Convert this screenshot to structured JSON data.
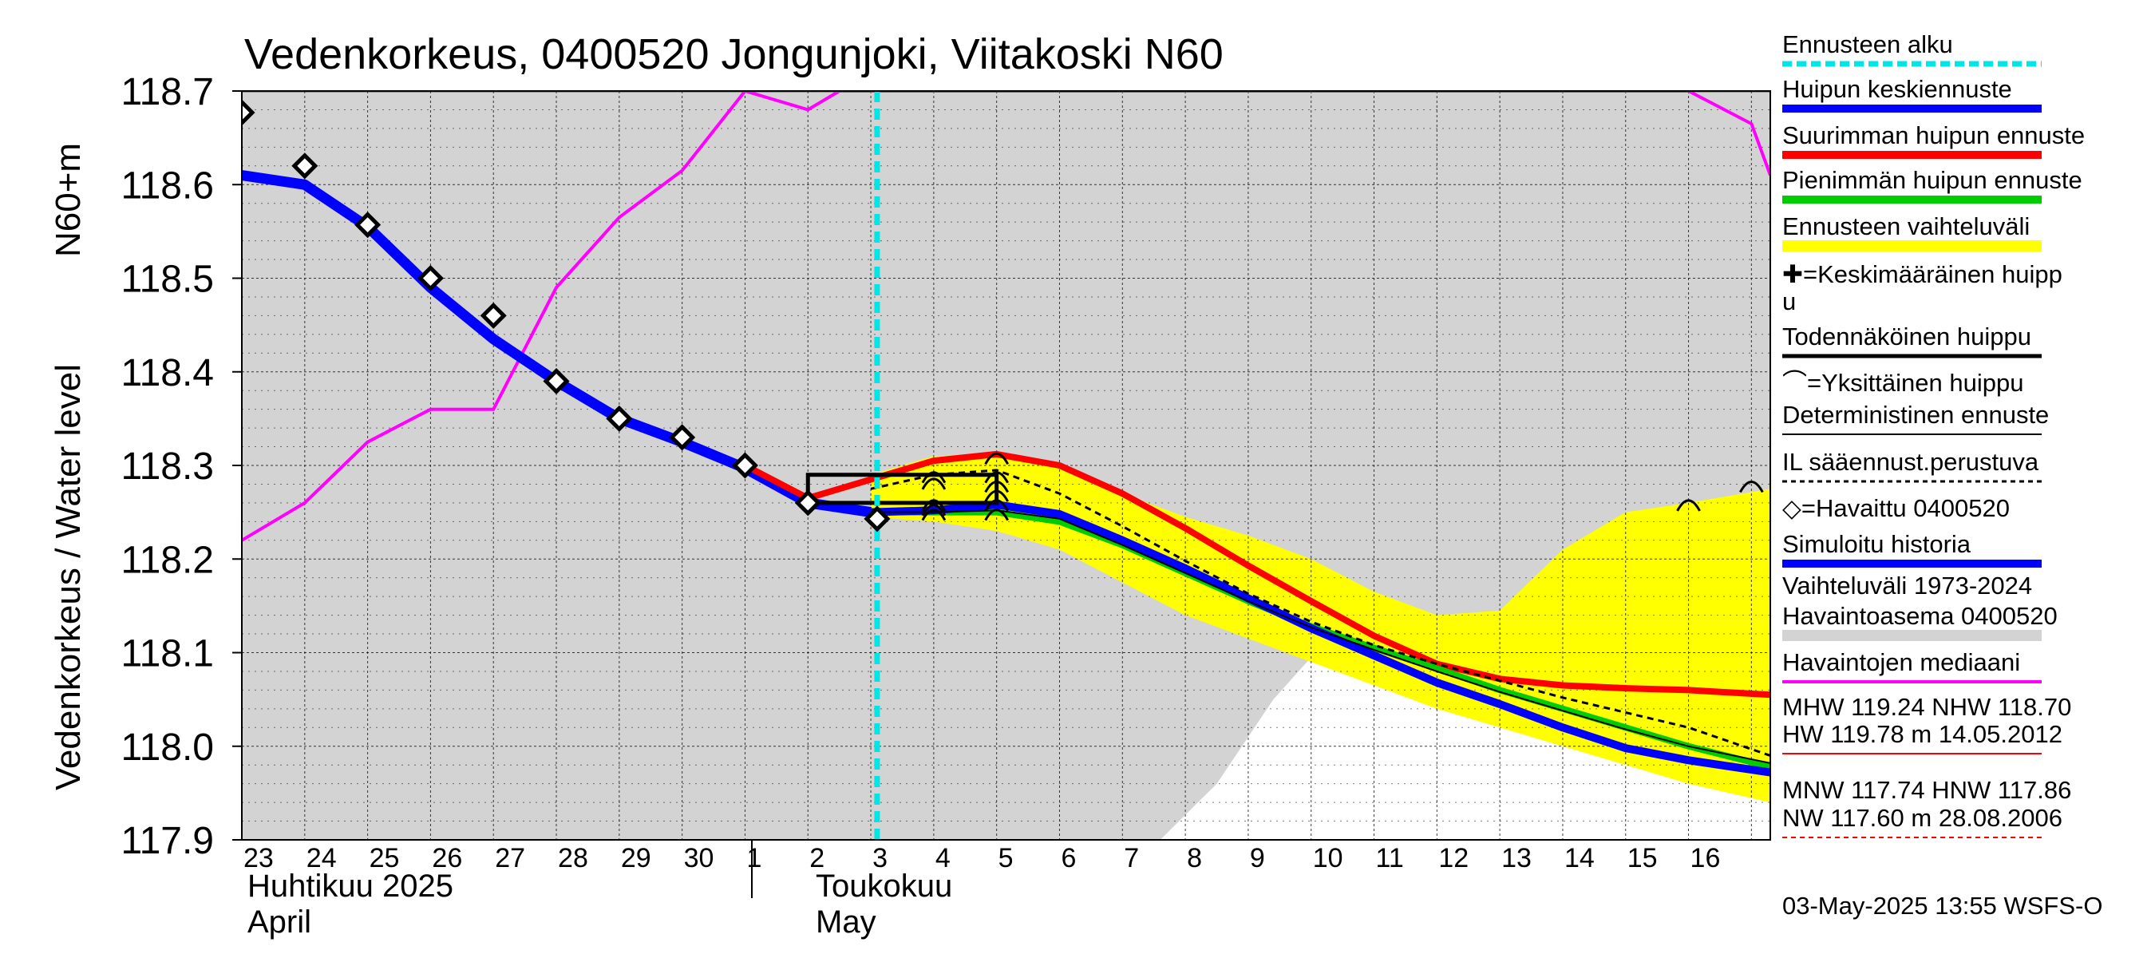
{
  "chart_data": {
    "type": "line",
    "title": "Vedenkorkeus, 0400520 Jongunjoki, Viitakoski N60",
    "ylabel": "Vedenkorkeus / Water level",
    "ylabel_unit": "N60+m",
    "ylim": [
      117.9,
      118.7
    ],
    "yticks": [
      "117.9",
      "118.0",
      "118.1",
      "118.2",
      "118.3",
      "118.4",
      "118.5",
      "118.6",
      "118.7"
    ],
    "xlim": [
      0,
      24.3
    ],
    "grid": true,
    "legend_placement": "right",
    "x_day_labels": [
      "23",
      "24",
      "25",
      "26",
      "27",
      "28",
      "29",
      "30",
      "1",
      "2",
      "3",
      "4",
      "5",
      "6",
      "7",
      "8",
      "9",
      "10",
      "11",
      "12",
      "13",
      "14",
      "15",
      "16"
    ],
    "month_labels": [
      {
        "fi": "Huhtikuu  2025",
        "en": "April"
      },
      {
        "fi": "Toukokuu",
        "en": "May"
      }
    ],
    "forecast_start_x": 10.1,
    "simulated_history": {
      "x": [
        0,
        1,
        2,
        3,
        4,
        5,
        6,
        7,
        8,
        9,
        10,
        11,
        12,
        13,
        14,
        15,
        16,
        17,
        18,
        19,
        20,
        21,
        22,
        23,
        24.3
      ],
      "y": [
        118.61,
        118.6,
        118.555,
        118.49,
        118.435,
        118.39,
        118.35,
        118.325,
        118.297,
        118.26,
        118.25,
        118.252,
        118.258,
        118.248,
        118.22,
        118.19,
        118.158,
        118.126,
        118.097,
        118.068,
        118.045,
        118.02,
        117.998,
        117.985,
        117.972
      ]
    },
    "observed": {
      "name": "Havaittu 0400520",
      "x": [
        0,
        1,
        2,
        3,
        4,
        5,
        6,
        7,
        8,
        9,
        10.1
      ],
      "y": [
        118.677,
        118.62,
        118.557,
        118.5,
        118.46,
        118.39,
        118.35,
        118.33,
        118.3,
        118.26,
        118.243
      ]
    },
    "median": {
      "name": "Havaintojen mediaani",
      "x": [
        0,
        1,
        2,
        3,
        4,
        5,
        6,
        7,
        8,
        9,
        9.5,
        23,
        24,
        24.3
      ],
      "y": [
        118.22,
        118.26,
        118.325,
        118.36,
        118.36,
        118.49,
        118.565,
        118.615,
        118.7,
        118.68,
        118.7,
        118.7,
        118.665,
        118.61
      ]
    },
    "max_peak_forecast": {
      "x": [
        8,
        9,
        10,
        11,
        12,
        13,
        14,
        15,
        16,
        17,
        18,
        19,
        20,
        21,
        22,
        23,
        24.3
      ],
      "y": [
        118.3,
        118.265,
        118.285,
        118.305,
        118.312,
        118.3,
        118.27,
        118.233,
        118.193,
        118.155,
        118.118,
        118.088,
        118.072,
        118.065,
        118.062,
        118.06,
        118.055
      ]
    },
    "min_peak_forecast": {
      "x": [
        10,
        11,
        12,
        13,
        14,
        15,
        16,
        17,
        18,
        19,
        20,
        21,
        22,
        23,
        24.3
      ],
      "y": [
        118.25,
        118.25,
        118.25,
        118.24,
        118.215,
        118.185,
        118.155,
        118.128,
        118.105,
        118.083,
        118.06,
        118.04,
        118.02,
        118.0,
        117.978
      ]
    },
    "mean_forecast": {
      "x": [
        10,
        11,
        12,
        13,
        14,
        15,
        16,
        17,
        18,
        19,
        20,
        21,
        22,
        23,
        24.3
      ],
      "y": [
        118.25,
        118.252,
        118.258,
        118.248,
        118.22,
        118.19,
        118.158,
        118.126,
        118.097,
        118.068,
        118.045,
        118.02,
        117.998,
        117.985,
        117.972
      ]
    },
    "deterministic_forecast": {
      "x": [
        10,
        11,
        12,
        13,
        14,
        15,
        16,
        17,
        18,
        19,
        20,
        21,
        22,
        23,
        24.3
      ],
      "y": [
        118.25,
        118.25,
        118.252,
        118.243,
        118.215,
        118.185,
        118.155,
        118.127,
        118.103,
        118.08,
        118.058,
        118.038,
        118.018,
        118.0,
        117.982
      ]
    },
    "il_forecast": {
      "x": [
        10,
        11,
        12,
        13,
        14,
        15,
        16,
        17,
        18,
        19,
        20,
        21,
        22,
        23,
        24.3
      ],
      "y": [
        118.275,
        118.29,
        118.295,
        118.27,
        118.235,
        118.198,
        118.163,
        118.133,
        118.108,
        118.088,
        118.07,
        118.052,
        118.036,
        118.02,
        117.99
      ]
    },
    "forecast_range": {
      "x": [
        10,
        11,
        12,
        13,
        14,
        15,
        16,
        17,
        18,
        19,
        20,
        21,
        22,
        23,
        24.3
      ],
      "upper": [
        118.29,
        118.31,
        118.312,
        118.3,
        118.27,
        118.245,
        118.225,
        118.2,
        118.165,
        118.14,
        118.145,
        118.21,
        118.25,
        118.26,
        118.275
      ],
      "lower": [
        118.245,
        118.24,
        118.23,
        118.21,
        118.175,
        118.14,
        118.115,
        118.09,
        118.065,
        118.04,
        118.02,
        118.0,
        117.98,
        117.96,
        117.94
      ]
    },
    "historical_range_lower": {
      "x": [
        14.6,
        15.5,
        16.4,
        17.2,
        17.6,
        18,
        18.5,
        19,
        20,
        21,
        22,
        23,
        24.3
      ],
      "y": [
        117.9,
        117.96,
        118.05,
        118.11,
        118.13,
        118.14,
        118.14,
        118.14,
        118.12,
        118.08,
        118.05,
        118.03,
        118.01
      ]
    },
    "probable_peak_box": {
      "x0": 9,
      "x1": 12,
      "y0": 118.26,
      "y1": 118.29
    },
    "individual_peaks": [
      {
        "x": 11,
        "y": 118.29
      },
      {
        "x": 11,
        "y": 118.283
      },
      {
        "x": 11,
        "y": 118.26
      },
      {
        "x": 11,
        "y": 118.255
      },
      {
        "x": 11,
        "y": 118.25
      },
      {
        "x": 12,
        "y": 118.31
      },
      {
        "x": 12,
        "y": 118.29
      },
      {
        "x": 12,
        "y": 118.28
      },
      {
        "x": 12,
        "y": 118.27
      },
      {
        "x": 12,
        "y": 118.26
      },
      {
        "x": 12,
        "y": 118.25
      },
      {
        "x": 23,
        "y": 118.26
      },
      {
        "x": 24,
        "y": 118.28
      }
    ],
    "reference_levels": {
      "upper_line": 118.7,
      "lower_line": 117.9
    },
    "legend": [
      "Ennusteen alku",
      "Huipun keskiennuste",
      "Suurimman huipun ennuste",
      "Pienimmän huipun ennuste",
      "Ennusteen vaihteluväli",
      "✚=Keskimääräinen huipp",
      "u",
      "Todennäköinen huippu",
      "⌒=Yksittäinen huippu",
      "Deterministinen ennuste",
      "IL sääennust.perustuva",
      "◇=Havaittu 0400520",
      "Simuloitu historia",
      "Vaihteluväli 1973-2024",
      " Havaintoasema 0400520",
      "Havaintojen mediaani",
      "MHW 119.24 NHW 118.70",
      "HW 119.78 m 14.05.2012",
      "MNW 117.74 HNW 117.86",
      "NW 117.60 m 28.08.2006"
    ],
    "footer": "03-May-2025 13:55 WSFS-O",
    "colors": {
      "historical_range": "#d3d3d3",
      "forecast_range": "#ffff00",
      "forecast_start": "#00e5e5",
      "mean_forecast": "#0000ff",
      "max_forecast": "#ff0000",
      "min_forecast": "#00cc00",
      "median": "#ff00ff",
      "limit_line": "#ff0000"
    }
  }
}
